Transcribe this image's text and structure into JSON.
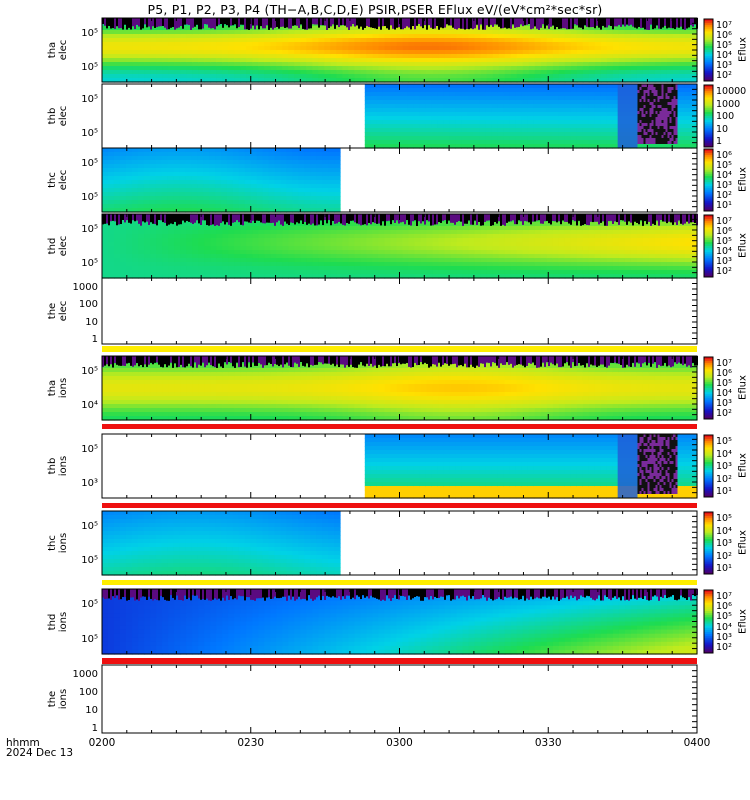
{
  "title": "P5, P1, P2, P3, P4 (TH−A,B,C,D,E) PSIR,PSER EFlux eV/(eV*cm²*sec*sr)",
  "footer": {
    "time_format": "hhmm",
    "date": "2024 Dec 13"
  },
  "chart_data": {
    "type": "heatmap",
    "x_axis": {
      "ticks": [
        "0200",
        "0230",
        "0300",
        "0330",
        "0400"
      ],
      "range": [
        "02:00",
        "04:00"
      ]
    },
    "colorscale": "rainbow (purple → blue → cyan → green → yellow → orange → red)",
    "panels": [
      {
        "id": "tha-elec",
        "label": [
          "tha",
          "elec"
        ],
        "yticks": [
          "10⁵",
          "10⁵"
        ],
        "colorbar": {
          "title": "Eflux",
          "labels": [
            "10⁷",
            "10⁶",
            "10⁵",
            "10⁴",
            "10³",
            "10²"
          ]
        },
        "data_start": "02:00",
        "data_end": "04:00"
      },
      {
        "id": "thb-elec",
        "label": [
          "thb",
          "elec"
        ],
        "yticks": [
          "10⁵",
          "10⁵"
        ],
        "colorbar": {
          "title": "",
          "labels": [
            "10000",
            "1000",
            "100",
            "10",
            "1"
          ]
        },
        "data_start": "02:53",
        "data_end": "04:00"
      },
      {
        "id": "thc-elec",
        "label": [
          "thc",
          "elec"
        ],
        "yticks": [
          "10⁵",
          "10⁵"
        ],
        "colorbar": {
          "title": "Eflux",
          "labels": [
            "10⁶",
            "10⁵",
            "10⁴",
            "10³",
            "10²",
            "10¹"
          ]
        },
        "data_start": "02:00",
        "data_end": "02:48"
      },
      {
        "id": "thd-elec",
        "label": [
          "thd",
          "elec"
        ],
        "yticks": [
          "10⁵",
          "10⁵"
        ],
        "colorbar": {
          "title": "Eflux",
          "labels": [
            "10⁷",
            "10⁶",
            "10⁵",
            "10⁴",
            "10³",
            "10²"
          ]
        },
        "data_start": "02:00",
        "data_end": "04:00"
      },
      {
        "id": "the-elec",
        "label": [
          "the",
          "elec"
        ],
        "yticks": [
          "1000",
          "100",
          "10",
          "1"
        ],
        "colorbar": null,
        "data_start": null,
        "data_end": null
      },
      {
        "id": "tha-ions",
        "label": [
          "tha",
          "ions"
        ],
        "yticks": [
          "10⁵",
          "10⁴"
        ],
        "colorbar": {
          "title": "Eflux",
          "labels": [
            "10⁷",
            "10⁶",
            "10⁵",
            "10⁴",
            "10³",
            "10²"
          ]
        },
        "data_start": "02:00",
        "data_end": "04:00"
      },
      {
        "id": "thb-ions",
        "label": [
          "thb",
          "ions"
        ],
        "yticks": [
          "10⁵",
          "10³"
        ],
        "colorbar": {
          "title": "Eflux",
          "labels": [
            "10⁵",
            "10⁴",
            "10³",
            "10²",
            "10¹"
          ]
        },
        "data_start": "02:53",
        "data_end": "04:00"
      },
      {
        "id": "thc-ions",
        "label": [
          "thc",
          "ions"
        ],
        "yticks": [
          "10⁵",
          "10⁵"
        ],
        "colorbar": {
          "title": "Eflux",
          "labels": [
            "10⁵",
            "10⁴",
            "10³",
            "10²",
            "10¹"
          ]
        },
        "data_start": "02:00",
        "data_end": "02:48"
      },
      {
        "id": "thd-ions",
        "label": [
          "thd",
          "ions"
        ],
        "yticks": [
          "10⁵",
          "10⁵"
        ],
        "colorbar": {
          "title": "Eflux",
          "labels": [
            "10⁷",
            "10⁶",
            "10⁵",
            "10⁴",
            "10³",
            "10²"
          ]
        },
        "data_start": "02:00",
        "data_end": "04:00"
      },
      {
        "id": "the-ions",
        "label": [
          "the",
          "ions"
        ],
        "yticks": [
          "1000",
          "100",
          "10",
          "1"
        ],
        "colorbar": null,
        "data_start": null,
        "data_end": null
      }
    ],
    "colors": {
      "status_yellow": "#ffee00",
      "status_red": "#ee1010"
    }
  }
}
